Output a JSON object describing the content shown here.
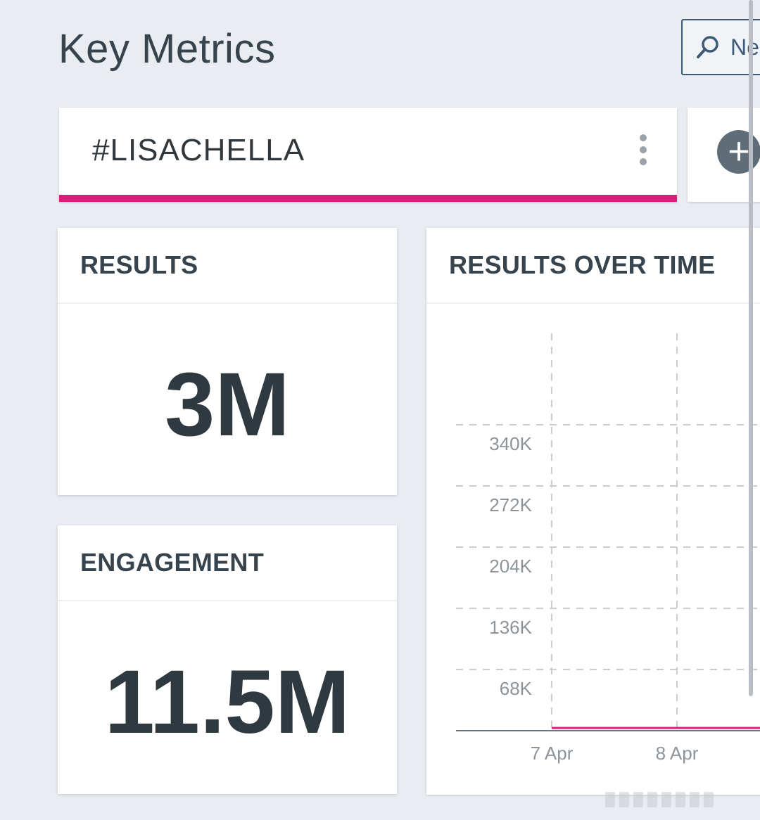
{
  "header": {
    "title": "Key Metrics",
    "search_label": "Ne"
  },
  "topic": {
    "name": "#LISACHELLA",
    "accent": "#df1a7a"
  },
  "metrics": {
    "results": {
      "label": "RESULTS",
      "value": "3M"
    },
    "engagement": {
      "label": "ENGAGEMENT",
      "value": "11.5M"
    }
  },
  "results_over_time": {
    "label": "RESULTS OVER TIME"
  },
  "chart_data": {
    "type": "line",
    "title": "RESULTS OVER TIME",
    "x": [
      "7 Apr",
      "8 Apr"
    ],
    "yticks": [
      "340K",
      "272K",
      "204K",
      "136K",
      "68K"
    ],
    "ylim": [
      0,
      408000
    ],
    "series": [
      {
        "values": [
          3000,
          3000
        ],
        "color": "#df1a7a"
      }
    ],
    "grid": true
  },
  "colors": {
    "background": "#e9edf1",
    "accent": "#df1a7a",
    "text": "#37444d"
  },
  "icons": {
    "search": "search-icon",
    "menu": "kebab-menu-icon",
    "add": "plus-icon"
  }
}
